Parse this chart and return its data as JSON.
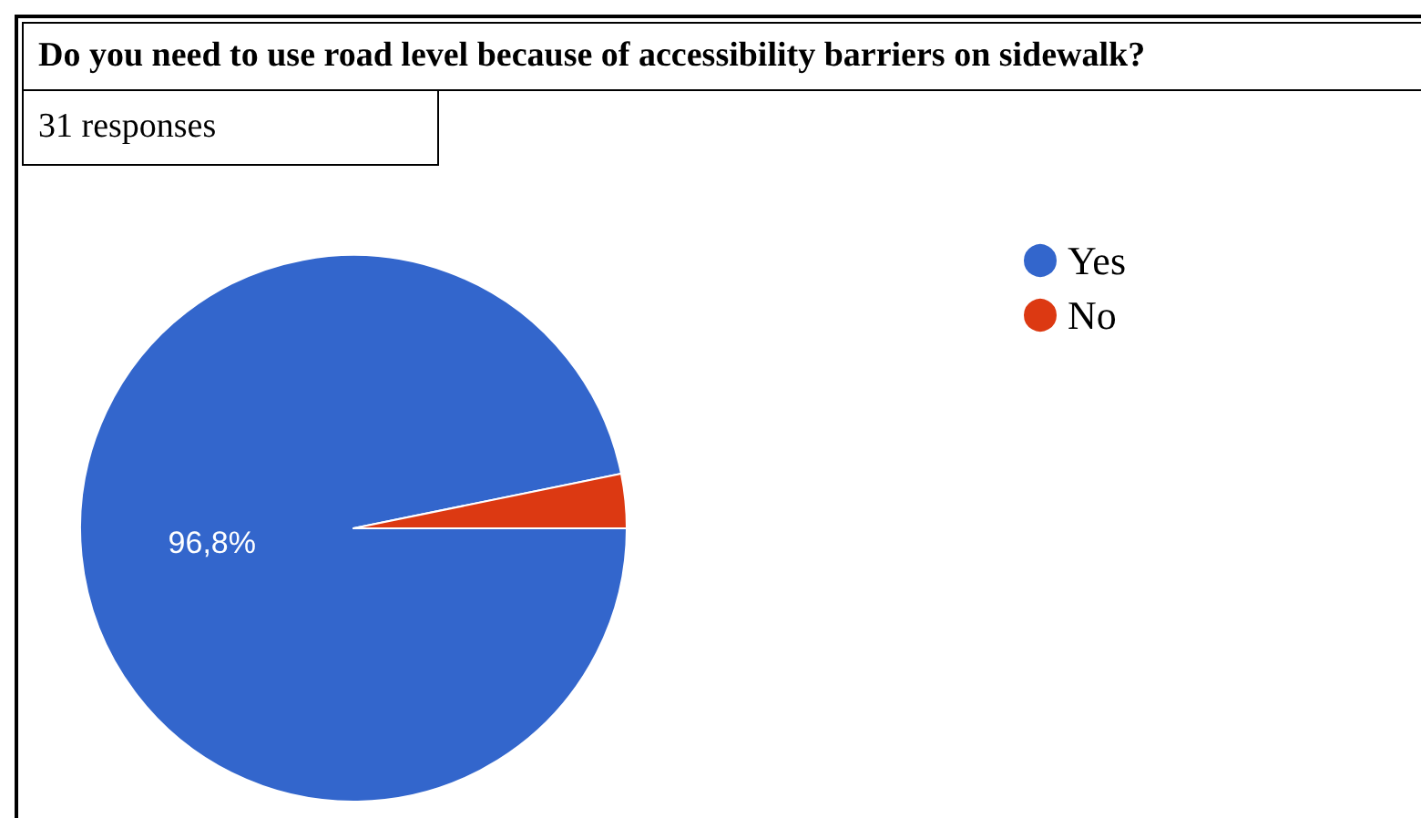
{
  "chart_data": {
    "type": "pie",
    "title": "Do you need to use road level because of accessibility barriers on sidewalk?",
    "subtitle": "31 responses",
    "categories": [
      "Yes",
      "No"
    ],
    "values": [
      96.8,
      3.2
    ],
    "colors": [
      "#3366cc",
      "#dc3912"
    ],
    "value_labels": [
      "96,8%",
      null
    ],
    "legend": "top right"
  }
}
